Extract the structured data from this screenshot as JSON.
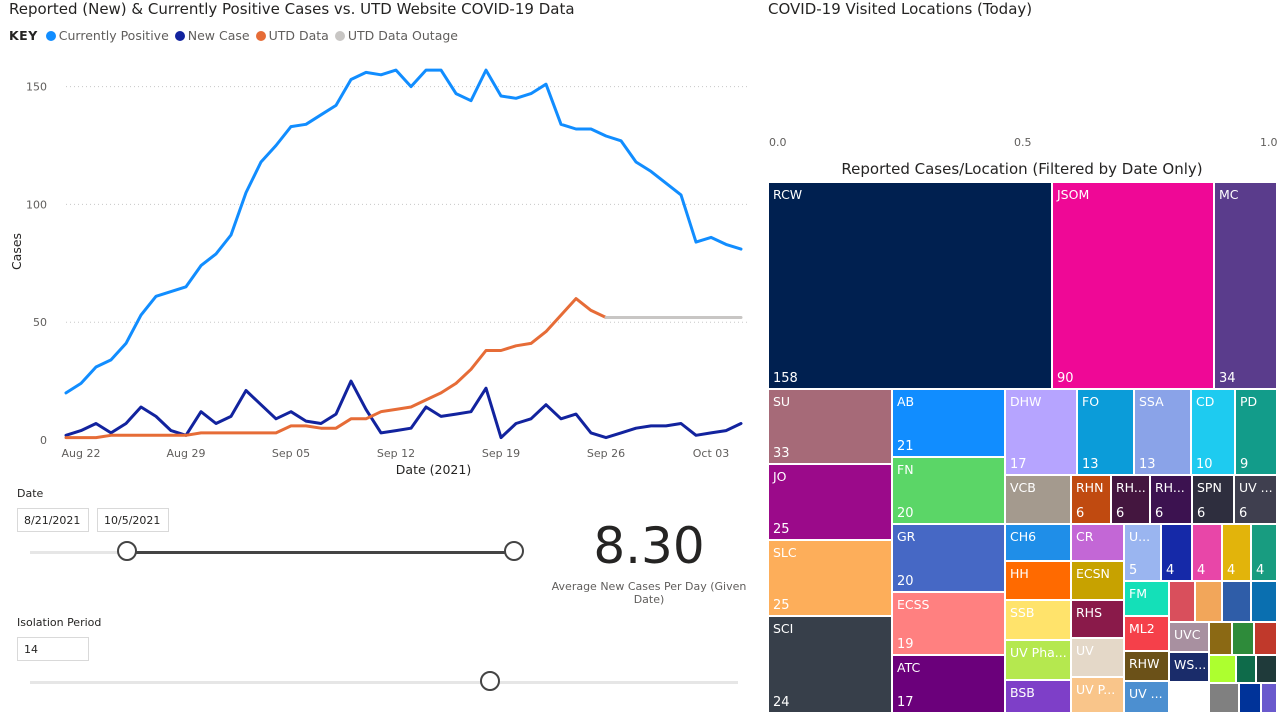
{
  "line_chart": {
    "title": "Reported (New) & Currently Positive Cases vs. UTD Website COVID-19 Data",
    "key_label": "KEY",
    "legend": [
      {
        "name": "Currently Positive",
        "color": "#118DFF"
      },
      {
        "name": "New Case",
        "color": "#12239E"
      },
      {
        "name": "UTD Data",
        "color": "#E66C37"
      },
      {
        "name": "UTD Data Outage",
        "color": "#C8C6C4"
      }
    ]
  },
  "kpi": {
    "value": "8.30",
    "label": "Average New Cases Per Day (Given Date)"
  },
  "date_slicer": {
    "label": "Date",
    "start": "8/21/2021",
    "end": "10/5/2021",
    "start_fraction": 0.2,
    "end_fraction": 1.0
  },
  "isolation_slicer": {
    "label": "Isolation Period",
    "value": "14",
    "fraction": 0.65
  },
  "visited": {
    "title": "COVID-19 Visited Locations (Today)",
    "ticks": [
      "0.0",
      "0.5",
      "1.0"
    ]
  },
  "treemap": {
    "title": "Reported Cases/Location (Filtered by Date Only)"
  },
  "chart_data": [
    {
      "type": "line",
      "title": "Reported (New) & Currently Positive Cases vs. UTD Website COVID-19 Data",
      "xlabel": "Date (2021)",
      "ylabel": "Cases",
      "ylim": [
        0,
        160
      ],
      "yticks": [
        0,
        50,
        100,
        150
      ],
      "grid": true,
      "x_start_day": 0,
      "x_end_day": 45,
      "xticks": [
        {
          "day": 1,
          "label": "Aug 22"
        },
        {
          "day": 8,
          "label": "Aug 29"
        },
        {
          "day": 15,
          "label": "Sep 05"
        },
        {
          "day": 22,
          "label": "Sep 12"
        },
        {
          "day": 29,
          "label": "Sep 19"
        },
        {
          "day": 36,
          "label": "Sep 26"
        },
        {
          "day": 43,
          "label": "Oct 03"
        }
      ],
      "series": [
        {
          "name": "Currently Positive",
          "color": "#118DFF",
          "days": [
            0,
            1,
            2,
            3,
            4,
            5,
            6,
            7,
            8,
            9,
            10,
            11,
            12,
            13,
            14,
            15,
            16,
            17,
            18,
            19,
            20,
            21,
            22,
            23,
            24,
            25,
            26,
            27,
            28,
            29,
            30,
            31,
            32,
            33,
            34,
            35,
            36,
            37,
            38,
            39,
            40,
            41,
            42,
            43,
            44,
            45
          ],
          "values": [
            20,
            24,
            31,
            34,
            41,
            53,
            61,
            63,
            65,
            74,
            79,
            87,
            105,
            118,
            125,
            133,
            134,
            138,
            142,
            153,
            156,
            155,
            157,
            150,
            157,
            157,
            147,
            144,
            157,
            146,
            145,
            147,
            151,
            134,
            132,
            132,
            129,
            127,
            118,
            114,
            109,
            104,
            84,
            86,
            83,
            81
          ]
        },
        {
          "name": "New Case",
          "color": "#12239E",
          "days": [
            0,
            1,
            2,
            3,
            4,
            5,
            6,
            7,
            8,
            9,
            10,
            11,
            12,
            13,
            14,
            15,
            16,
            17,
            18,
            19,
            20,
            21,
            22,
            23,
            24,
            25,
            26,
            27,
            28,
            29,
            30,
            31,
            32,
            33,
            34,
            35,
            36,
            37,
            38,
            39,
            40,
            41,
            42,
            43,
            44,
            45
          ],
          "values": [
            2,
            4,
            7,
            3,
            7,
            14,
            10,
            4,
            2,
            12,
            7,
            10,
            21,
            15,
            9,
            12,
            8,
            7,
            11,
            25,
            13,
            3,
            4,
            5,
            14,
            10,
            11,
            12,
            22,
            1,
            7,
            9,
            15,
            9,
            11,
            3,
            1,
            3,
            5,
            6,
            6,
            7,
            2,
            3,
            4,
            7
          ]
        },
        {
          "name": "UTD Data",
          "color": "#E66C37",
          "days": [
            0,
            1,
            2,
            3,
            4,
            5,
            6,
            7,
            8,
            9,
            10,
            11,
            12,
            13,
            14,
            15,
            16,
            17,
            18,
            19,
            20,
            21,
            22,
            23,
            24,
            25,
            26,
            27,
            28,
            29,
            30,
            31,
            32,
            33,
            34,
            35,
            36
          ],
          "values": [
            1,
            1,
            1,
            2,
            2,
            2,
            2,
            2,
            2,
            3,
            3,
            3,
            3,
            3,
            3,
            6,
            6,
            5,
            5,
            9,
            9,
            12,
            13,
            14,
            17,
            20,
            24,
            30,
            38,
            38,
            40,
            41,
            46,
            53,
            60,
            55,
            52
          ]
        },
        {
          "name": "UTD Data Outage",
          "color": "#C8C6C4",
          "days": [
            36,
            45
          ],
          "values": [
            52,
            52
          ]
        }
      ]
    },
    {
      "type": "treemap",
      "title": "Reported Cases/Location (Filtered by Date Only)",
      "items": [
        {
          "name": "RCW",
          "value": 158,
          "color": "#002050",
          "label": "RCW",
          "value_label": "158"
        },
        {
          "name": "JSOM",
          "value": 90,
          "color": "#EF0896",
          "label": "JSOM",
          "value_label": "90"
        },
        {
          "name": "MC",
          "value": 34,
          "color": "#5A3C8C",
          "label": "MC",
          "value_label": "34"
        },
        {
          "name": "SU",
          "value": 33,
          "color": "#A66A78",
          "label": "SU",
          "value_label": "33"
        },
        {
          "name": "JO",
          "value": 25,
          "color": "#9B0A8A",
          "label": "JO",
          "value_label": "25"
        },
        {
          "name": "SLC",
          "value": 25,
          "color": "#FDAE5A",
          "label": "SLC",
          "value_label": "25"
        },
        {
          "name": "SCI",
          "value": 24,
          "color": "#373F4A",
          "label": "SCI",
          "value_label": "24"
        },
        {
          "name": "AB",
          "value": 21,
          "color": "#118DFF",
          "label": "AB",
          "value_label": "21"
        },
        {
          "name": "FN",
          "value": 20,
          "color": "#5BD667",
          "label": "FN",
          "value_label": "20"
        },
        {
          "name": "GR",
          "value": 20,
          "color": "#4668C5",
          "label": "GR",
          "value_label": "20"
        },
        {
          "name": "ECSS",
          "value": 19,
          "color": "#FF8080",
          "label": "ECSS",
          "value_label": "19"
        },
        {
          "name": "ATC",
          "value": 17,
          "color": "#6B007B",
          "label": "ATC",
          "value_label": "17"
        },
        {
          "name": "DHW",
          "value": 17,
          "color": "#B6A4FF",
          "label": "DHW",
          "value_label": "17"
        },
        {
          "name": "FO",
          "value": 13,
          "color": "#0B9CD9",
          "label": "FO",
          "value_label": "13"
        },
        {
          "name": "SSA",
          "value": 13,
          "color": "#8AA3E8",
          "label": "SSA",
          "value_label": "13"
        },
        {
          "name": "CD",
          "value": 10,
          "color": "#1ECBF0",
          "label": "CD",
          "value_label": "10"
        },
        {
          "name": "PD",
          "value": 9,
          "color": "#129C8A",
          "label": "PD",
          "value_label": "9"
        },
        {
          "name": "VCB",
          "value": null,
          "color": "#A49A8E",
          "label": "VCB",
          "value_label": ""
        },
        {
          "name": "RHN",
          "value": 6,
          "color": "#C04A10",
          "label": "RHN",
          "value_label": "6"
        },
        {
          "name": "RH...",
          "value": 6,
          "color": "#44163F",
          "label": "RH...",
          "value_label": "6"
        },
        {
          "name": "RH...",
          "value": 6,
          "color": "#3C1250",
          "label": "RH...",
          "value_label": "6"
        },
        {
          "name": "SPN",
          "value": 6,
          "color": "#2E2E3E",
          "label": "SPN",
          "value_label": "6"
        },
        {
          "name": "UV ...",
          "value": 6,
          "color": "#3F3F4F",
          "label": "UV ...",
          "value_label": "6"
        },
        {
          "name": "CH6",
          "value": null,
          "color": "#1F8EE8",
          "label": "CH6",
          "value_label": ""
        },
        {
          "name": "CR",
          "value": null,
          "color": "#C367D6",
          "label": "CR",
          "value_label": ""
        },
        {
          "name": "U...",
          "value": 5,
          "color": "#9AB5F0",
          "label": "U...",
          "value_label": "5"
        },
        {
          "name": "",
          "value": 4,
          "color": "#1529A8",
          "label": "",
          "value_label": "4"
        },
        {
          "name": "",
          "value": 4,
          "color": "#E846A8",
          "label": "",
          "value_label": "4"
        },
        {
          "name": "",
          "value": 4,
          "color": "#E2B40B",
          "label": "",
          "value_label": "4"
        },
        {
          "name": "",
          "value": 4,
          "color": "#189C80",
          "label": "",
          "value_label": "4"
        },
        {
          "name": "HH",
          "value": null,
          "color": "#FF6A00",
          "label": "HH",
          "value_label": ""
        },
        {
          "name": "ECSN",
          "value": null,
          "color": "#C7A200",
          "label": "ECSN",
          "value_label": ""
        },
        {
          "name": "FM",
          "value": null,
          "color": "#14E0B8",
          "label": "FM",
          "value_label": ""
        },
        {
          "name": "SSB",
          "value": null,
          "color": "#FFE36B",
          "label": "SSB",
          "value_label": ""
        },
        {
          "name": "RHS",
          "value": null,
          "color": "#8A1A4A",
          "label": "RHS",
          "value_label": ""
        },
        {
          "name": "ML2",
          "value": null,
          "color": "#F5404A",
          "label": "ML2",
          "value_label": ""
        },
        {
          "name": "UV Pha...",
          "value": null,
          "color": "#B5E84F",
          "label": "UV Pha...",
          "value_label": ""
        },
        {
          "name": "UV",
          "value": null,
          "color": "#E4D8C8",
          "label": "UV",
          "value_label": ""
        },
        {
          "name": "RHW",
          "value": null,
          "color": "#6B5118",
          "label": "RHW",
          "value_label": ""
        },
        {
          "name": "UVC",
          "value": null,
          "color": "#A890A0",
          "label": "UVC",
          "value_label": ""
        },
        {
          "name": "WS...",
          "value": null,
          "color": "#1A2C6A",
          "label": "WS...",
          "value_label": ""
        },
        {
          "name": "BSB",
          "value": null,
          "color": "#7E3FC8",
          "label": "BSB",
          "value_label": ""
        },
        {
          "name": "UV P...",
          "value": null,
          "color": "#F9C58A",
          "label": "UV P...",
          "value_label": ""
        },
        {
          "name": "UV ...",
          "value": null,
          "color": "#4C8FD0",
          "label": "UV ...",
          "value_label": ""
        }
      ]
    }
  ]
}
